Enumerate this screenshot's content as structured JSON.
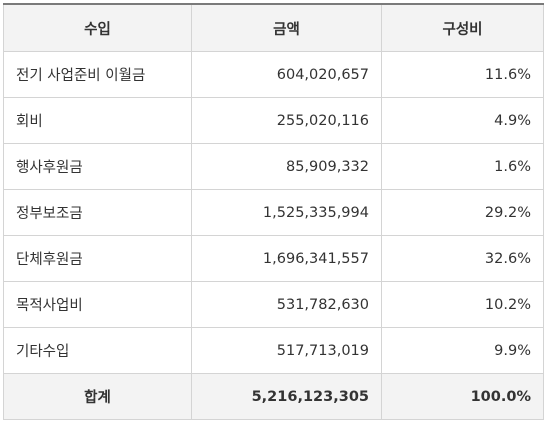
{
  "header": {
    "col_source": "수입",
    "col_amount": "금액",
    "col_ratio": "구성비"
  },
  "rows": [
    {
      "name": "전기 사업준비 이월금",
      "amount": "604,020,657",
      "ratio": "11.6%"
    },
    {
      "name": "회비",
      "amount": "255,020,116",
      "ratio": "4.9%"
    },
    {
      "name": "행사후원금",
      "amount": "85,909,332",
      "ratio": "1.6%"
    },
    {
      "name": "정부보조금",
      "amount": "1,525,335,994",
      "ratio": "29.2%"
    },
    {
      "name": "단체후원금",
      "amount": "1,696,341,557",
      "ratio": "32.6%"
    },
    {
      "name": "목적사업비",
      "amount": "531,782,630",
      "ratio": "10.2%"
    },
    {
      "name": "기타수입",
      "amount": "517,713,019",
      "ratio": "9.9%"
    }
  ],
  "total": {
    "name": "합계",
    "amount": "5,216,123,305",
    "ratio": "100.0%"
  }
}
